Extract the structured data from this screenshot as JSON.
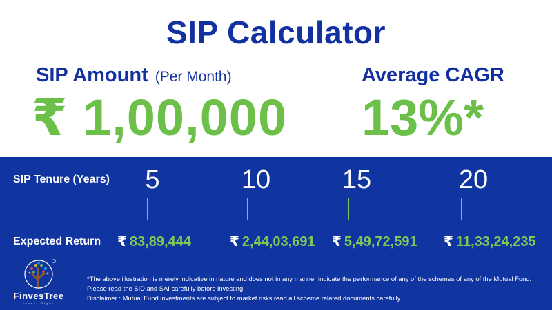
{
  "title": "SIP Calculator",
  "sip_amount": {
    "label": "SIP Amount",
    "sub_label": "(Per Month)",
    "value": "₹ 1,00,000"
  },
  "cagr": {
    "label": "Average CAGR",
    "value": "13%*"
  },
  "tenure_label": "SIP Tenure (Years)",
  "return_label": "Expected Return",
  "rows": [
    {
      "year": "5",
      "currency": "₹",
      "amount": "83,89,444"
    },
    {
      "year": "10",
      "currency": "₹",
      "amount": "2,44,03,691"
    },
    {
      "year": "15",
      "currency": "₹",
      "amount": "5,49,72,591"
    },
    {
      "year": "20",
      "currency": "₹",
      "amount": "11,33,24,235"
    }
  ],
  "logo": {
    "name": "FinvesTree",
    "tagline": "Invest Right"
  },
  "disclaimer": {
    "line1": "*The above illustration is merely indicative in nature and does not in any manner indicate the performance of any of the schemes of any of the Mutual Fund. Please read the SID and SAI carefully before investing.",
    "line2": "Disclaimer : Mutual Fund investments are subject to market risks read all scheme related documents carefully."
  },
  "colors": {
    "blue": "#1135a0",
    "title_blue": "#1230a0",
    "green": "#6cc04a"
  }
}
